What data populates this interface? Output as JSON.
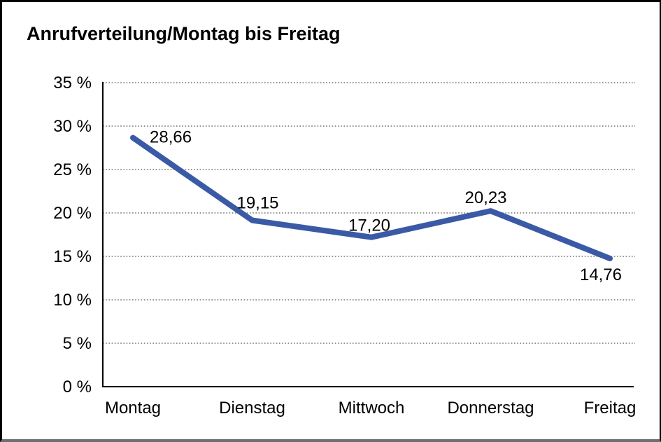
{
  "page": {
    "title": "Anrufverteilung/Montag bis Freitag"
  },
  "chart_data": {
    "type": "line",
    "title": "Anrufverteilung/Montag bis Freitag",
    "categories": [
      "Montag",
      "Dienstag",
      "Mittwoch",
      "Donnerstag",
      "Freitag"
    ],
    "values": [
      28.66,
      19.15,
      17.2,
      20.23,
      14.76
    ],
    "point_labels": [
      "28,66",
      "19,15",
      "17,20",
      "20,23",
      "14,76"
    ],
    "ytick_labels": [
      "0 %",
      "5 %",
      "10 %",
      "15 %",
      "20 %",
      "25 %",
      "30 %",
      "35 %"
    ],
    "ylim": [
      0,
      35
    ],
    "ytick_step": 5,
    "xlabel": "",
    "ylabel": "",
    "grid": "horizontal-dotted",
    "legend": "none",
    "colors": {
      "line": "#3a5aa6",
      "axis": "#000000",
      "grid": "#6f6f6f",
      "text": "#000000",
      "background": "#ffffff"
    }
  }
}
